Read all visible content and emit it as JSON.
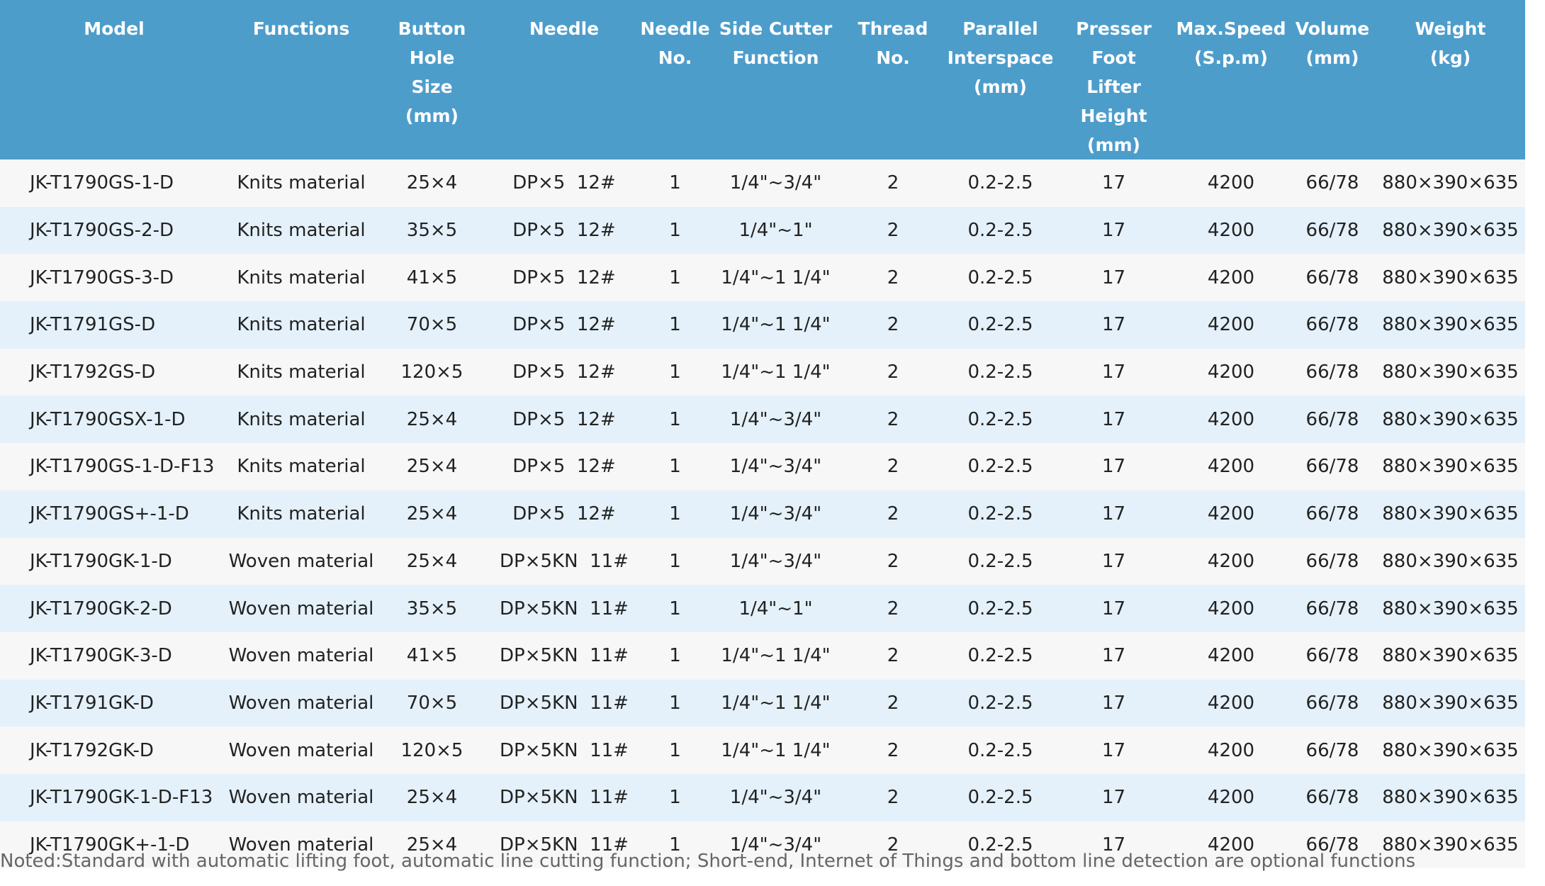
{
  "table": {
    "header": [
      "Model",
      "Functions",
      "Button Hole\nSize\n(mm)",
      "Needle",
      "Needle\nNo.",
      "Side Cutter\nFunction",
      "Thread No.",
      "Parallel\nInterspace\n(mm)",
      "Presser Foot\nLifter Height\n(mm)",
      "Max.Speed\n(S.p.m)",
      "Volume\n(mm)",
      "Weight\n(kg)"
    ],
    "rows": [
      [
        "JK-T1790GS-1-D",
        "Knits material",
        "25×4",
        "DP×5  12#",
        "1",
        "1/4\"~3/4\"",
        "2",
        "0.2-2.5",
        "17",
        "4200",
        "66/78",
        "880×390×635"
      ],
      [
        "JK-T1790GS-2-D",
        "Knits material",
        "35×5",
        "DP×5  12#",
        "1",
        "1/4\"~1\"",
        "2",
        "0.2-2.5",
        "17",
        "4200",
        "66/78",
        "880×390×635"
      ],
      [
        "JK-T1790GS-3-D",
        "Knits material",
        "41×5",
        "DP×5  12#",
        "1",
        "1/4\"~1 1/4\"",
        "2",
        "0.2-2.5",
        "17",
        "4200",
        "66/78",
        "880×390×635"
      ],
      [
        "JK-T1791GS-D",
        "Knits material",
        "70×5",
        "DP×5  12#",
        "1",
        "1/4\"~1 1/4\"",
        "2",
        "0.2-2.5",
        "17",
        "4200",
        "66/78",
        "880×390×635"
      ],
      [
        "JK-T1792GS-D",
        "Knits material",
        "120×5",
        "DP×5  12#",
        "1",
        "1/4\"~1 1/4\"",
        "2",
        "0.2-2.5",
        "17",
        "4200",
        "66/78",
        "880×390×635"
      ],
      [
        "JK-T1790GSX-1-D",
        "Knits material",
        "25×4",
        "DP×5  12#",
        "1",
        "1/4\"~3/4\"",
        "2",
        "0.2-2.5",
        "17",
        "4200",
        "66/78",
        "880×390×635"
      ],
      [
        "JK-T1790GS-1-D-F13",
        "Knits material",
        "25×4",
        "DP×5  12#",
        "1",
        "1/4\"~3/4\"",
        "2",
        "0.2-2.5",
        "17",
        "4200",
        "66/78",
        "880×390×635"
      ],
      [
        "JK-T1790GS+-1-D",
        "Knits material",
        "25×4",
        "DP×5  12#",
        "1",
        "1/4\"~3/4\"",
        "2",
        "0.2-2.5",
        "17",
        "4200",
        "66/78",
        "880×390×635"
      ],
      [
        "JK-T1790GK-1-D",
        "Woven material",
        "25×4",
        "DP×5KN  11#",
        "1",
        "1/4\"~3/4\"",
        "2",
        "0.2-2.5",
        "17",
        "4200",
        "66/78",
        "880×390×635"
      ],
      [
        "JK-T1790GK-2-D",
        "Woven material",
        "35×5",
        "DP×5KN  11#",
        "1",
        "1/4\"~1\"",
        "2",
        "0.2-2.5",
        "17",
        "4200",
        "66/78",
        "880×390×635"
      ],
      [
        "JK-T1790GK-3-D",
        "Woven material",
        "41×5",
        "DP×5KN  11#",
        "1",
        "1/4\"~1 1/4\"",
        "2",
        "0.2-2.5",
        "17",
        "4200",
        "66/78",
        "880×390×635"
      ],
      [
        "JK-T1791GK-D",
        "Woven material",
        "70×5",
        "DP×5KN  11#",
        "1",
        "1/4\"~1 1/4\"",
        "2",
        "0.2-2.5",
        "17",
        "4200",
        "66/78",
        "880×390×635"
      ],
      [
        "JK-T1792GK-D",
        "Woven material",
        "120×5",
        "DP×5KN  11#",
        "1",
        "1/4\"~1 1/4\"",
        "2",
        "0.2-2.5",
        "17",
        "4200",
        "66/78",
        "880×390×635"
      ],
      [
        "JK-T1790GK-1-D-F13",
        "Woven material",
        "25×4",
        "DP×5KN  11#",
        "1",
        "1/4\"~3/4\"",
        "2",
        "0.2-2.5",
        "17",
        "4200",
        "66/78",
        "880×390×635"
      ],
      [
        "JK-T1790GK+-1-D",
        "Woven material",
        "25×4",
        "DP×5KN  11#",
        "1",
        "1/4\"~3/4\"",
        "2",
        "0.2-2.5",
        "17",
        "4200",
        "66/78",
        "880×390×635"
      ]
    ]
  },
  "note": "Noted:Standard with automatic lifting foot, automatic line cutting function; Short-end, Internet of Things and bottom line detection are optional functions"
}
